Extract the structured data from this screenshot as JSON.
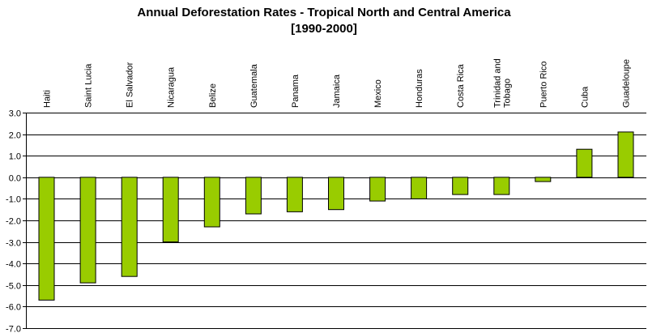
{
  "chart_data": {
    "type": "bar",
    "title_lines": [
      "Annual Deforestation Rates - Tropical North and Central America",
      "[1990-2000]"
    ],
    "categories": [
      "Haiti",
      "Saint Lucia",
      "El Salvador",
      "Nicaragua",
      "Belize",
      "Guatemala",
      "Panama",
      "Jamaica",
      "Mexico",
      "Honduras",
      "Costa Rica",
      "Trinidad and Tobago",
      "Puerto Rico",
      "Cuba",
      "Guadeloupe"
    ],
    "values": [
      -5.7,
      -4.9,
      -4.6,
      -3.0,
      -2.3,
      -1.7,
      -1.6,
      -1.5,
      -1.1,
      -1.0,
      -0.8,
      -0.8,
      -0.2,
      1.3,
      2.1
    ],
    "ylim": [
      -7.0,
      3.0
    ],
    "yticks": [
      "3.0",
      "2.0",
      "1.0",
      "0.0",
      "-1.0",
      "-2.0",
      "-3.0",
      "-4.0",
      "-5.0",
      "-6.0",
      "-7.0"
    ],
    "xlabel": "",
    "ylabel": "",
    "grid": true,
    "bar_color": "#99cc00",
    "bar_edge_color": "#000000",
    "category_labels_position": "top-rotated"
  }
}
